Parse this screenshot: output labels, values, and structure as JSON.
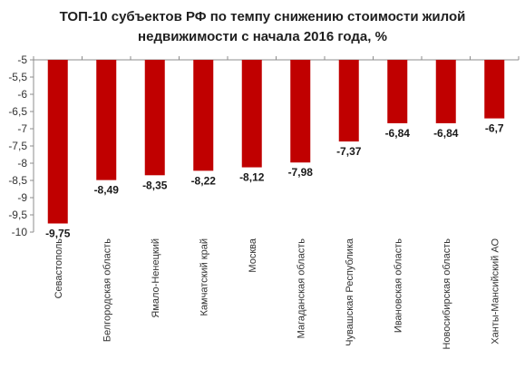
{
  "chart_data": {
    "type": "bar",
    "title_lines": [
      "ТОП-10 субъектов РФ по темпу снижению стоимости жилой",
      "недвижимости с начала 2016 года, %"
    ],
    "categories": [
      "Севастополь",
      "Белгородская область",
      "Ямало-Ненецкий",
      "Камчатский край",
      "Москва",
      "Магаданская область",
      "Чувашская Республика",
      "Ивановская область",
      "Новосибирская область",
      "Ханты-Мансийский АО"
    ],
    "values": [
      -9.75,
      -8.49,
      -8.35,
      -8.22,
      -8.12,
      -7.98,
      -7.37,
      -6.84,
      -6.84,
      -6.7
    ],
    "value_labels": [
      "-9,75",
      "-8,49",
      "-8,35",
      "-8,22",
      "-8,12",
      "-7,98",
      "-7,37",
      "-6,84",
      "-6,84",
      "-6,7"
    ],
    "ylim": [
      -10,
      -5
    ],
    "yticks": [
      -5,
      -5.5,
      -6,
      -6.5,
      -7,
      -7.5,
      -8,
      -8.5,
      -9,
      -9.5,
      -10
    ],
    "ytick_labels": [
      "-5",
      "-5,5",
      "-6",
      "-6,5",
      "-7",
      "-7,5",
      "-8",
      "-8,5",
      "-9",
      "-9,5",
      "-10"
    ],
    "grid": false,
    "legend": "none",
    "colors": {
      "bar": "#c00000",
      "axis": "#8c8c8c",
      "text": "#333333"
    }
  }
}
